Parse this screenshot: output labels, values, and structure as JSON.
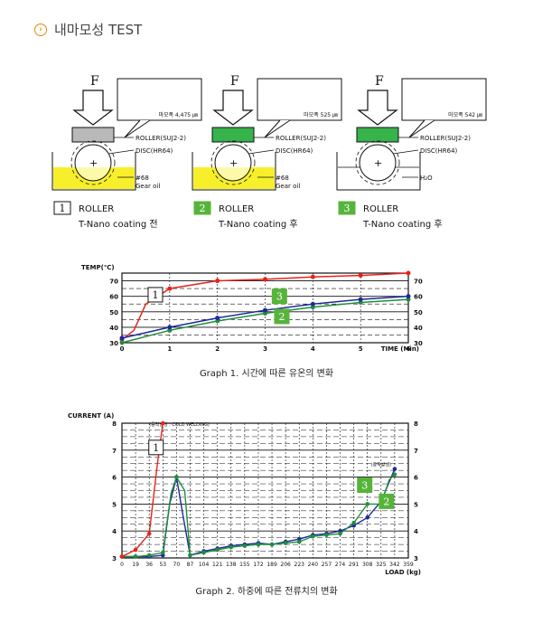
{
  "page": {
    "title": "내마모성 TEST"
  },
  "diagrams": [
    {
      "force": "F",
      "wear_label": "마모폭 4,475 ㎛",
      "roller": "ROLLER(SUJ2-2)",
      "disc": "DISC(HR64)",
      "oil": "#68",
      "oil2": "Gear oil",
      "num": "1",
      "name": "ROLLER",
      "coating": "T-Nano coating 전"
    },
    {
      "force": "F",
      "wear_label": "마모폭 525 ㎛",
      "roller": "ROLLER(SUJ2-2)",
      "disc": "DISC(HR64)",
      "oil": "#68",
      "oil2": "Gear oil",
      "num": "2",
      "name": "ROLLER",
      "coating": "T-Nano coating 후"
    },
    {
      "force": "F",
      "wear_label": "마모폭 542 ㎛",
      "roller": "ROLLER(SUJ2-2)",
      "disc": "DISC(HR64)",
      "oil": "H₂O",
      "oil2": "",
      "num": "3",
      "name": "ROLLER",
      "coating": "T-Nano coating 후"
    }
  ],
  "colors": {
    "red": "#e8221b",
    "blue": "#1f2a9c",
    "green": "#1e8f3a",
    "label_green": "#56b43a",
    "oil": "#f7ef2a"
  },
  "chart_data": [
    {
      "type": "line",
      "caption": "Graph 1. 시간에 따른 유온의 변화",
      "ylabel": "TEMP(℃)",
      "xlabel": "TIME (Min)",
      "xlim": [
        0,
        6
      ],
      "ylim": [
        30,
        75
      ],
      "xticks": [
        0,
        1,
        2,
        3,
        4,
        5,
        6
      ],
      "yticks_left": [
        30,
        40,
        50,
        60,
        70
      ],
      "yticks_right": [
        30,
        40,
        50,
        60,
        70
      ],
      "series": [
        {
          "label": "1",
          "color": "#e8221b",
          "points": [
            [
              0,
              32
            ],
            [
              0.25,
              38
            ],
            [
              0.5,
              55
            ],
            [
              1,
              65
            ],
            [
              2,
              70
            ],
            [
              3,
              71
            ],
            [
              4,
              72.5
            ],
            [
              5,
              73.5
            ],
            [
              6,
              75
            ]
          ]
        },
        {
          "label": "2",
          "color": "#1e8f3a",
          "points": [
            [
              0,
              30
            ],
            [
              1,
              38
            ],
            [
              2,
              44
            ],
            [
              3,
              49
            ],
            [
              4,
              53
            ],
            [
              5,
              56
            ],
            [
              6,
              58
            ]
          ]
        },
        {
          "label": "3",
          "color": "#1f2a9c",
          "points": [
            [
              0,
              33
            ],
            [
              1,
              40
            ],
            [
              2,
              46
            ],
            [
              3,
              51
            ],
            [
              4,
              55
            ],
            [
              5,
              58
            ],
            [
              6,
              60
            ]
          ]
        }
      ]
    },
    {
      "type": "line",
      "caption": "Graph 2. 하중에 따른 전류치의 변화",
      "ylabel": "CURRENT (A)",
      "xlabel": "LOAD (kg)",
      "categories": [
        "0",
        "19",
        "36",
        "53",
        "70",
        "87",
        "104",
        "121",
        "138",
        "155",
        "172",
        "189",
        "206",
        "223",
        "240",
        "257",
        "274",
        "291",
        "308",
        "325",
        "342",
        "359"
      ],
      "ylim": [
        3,
        8
      ],
      "yticks_left": [
        3,
        4,
        5,
        6,
        7,
        8
      ],
      "yticks_right": [
        3,
        4,
        5,
        6,
        7,
        8
      ],
      "annotations": [
        {
          "text": "(융착발생 : COLD WELDING)",
          "at": [
            2,
            8
          ]
        },
        {
          "text": "(융착발생)",
          "at": [
            19,
            6.5
          ]
        }
      ],
      "series": [
        {
          "label": "1",
          "color": "#e8221b",
          "points": [
            [
              0,
              3.05
            ],
            [
              1,
              3.3
            ],
            [
              2,
              3.9
            ],
            [
              2.6,
              6.5
            ],
            [
              3,
              8
            ]
          ]
        },
        {
          "label": "2",
          "color": "#1e8f3a",
          "points": [
            [
              0,
              3.05
            ],
            [
              1,
              3.05
            ],
            [
              2,
              3.1
            ],
            [
              3,
              3.2
            ],
            [
              3.6,
              5.4
            ],
            [
              4,
              6.0
            ],
            [
              4.6,
              5.5
            ],
            [
              5,
              3.1
            ],
            [
              6,
              3.2
            ],
            [
              7,
              3.3
            ],
            [
              8,
              3.4
            ],
            [
              9,
              3.45
            ],
            [
              10,
              3.5
            ],
            [
              11,
              3.5
            ],
            [
              12,
              3.55
            ],
            [
              13,
              3.6
            ],
            [
              14,
              3.8
            ],
            [
              15,
              3.85
            ],
            [
              16,
              3.9
            ],
            [
              17,
              4.3
            ],
            [
              18,
              5.0
            ],
            [
              19,
              5.0
            ],
            [
              19.6,
              5.9
            ],
            [
              20,
              6.1
            ]
          ]
        },
        {
          "label": "3",
          "color": "#1f2a9c",
          "points": [
            [
              0,
              3.05
            ],
            [
              1,
              3.05
            ],
            [
              2,
              3.05
            ],
            [
              3,
              3.1
            ],
            [
              3.5,
              5.0
            ],
            [
              4,
              6.0
            ],
            [
              4.5,
              4.5
            ],
            [
              5,
              3.1
            ],
            [
              6,
              3.25
            ],
            [
              7,
              3.35
            ],
            [
              8,
              3.45
            ],
            [
              9,
              3.5
            ],
            [
              10,
              3.55
            ],
            [
              11,
              3.5
            ],
            [
              12,
              3.6
            ],
            [
              13,
              3.7
            ],
            [
              14,
              3.85
            ],
            [
              15,
              3.9
            ],
            [
              16,
              4.0
            ],
            [
              17,
              4.2
            ],
            [
              18,
              4.5
            ],
            [
              19,
              5.1
            ],
            [
              20,
              6.3
            ]
          ]
        }
      ]
    }
  ]
}
